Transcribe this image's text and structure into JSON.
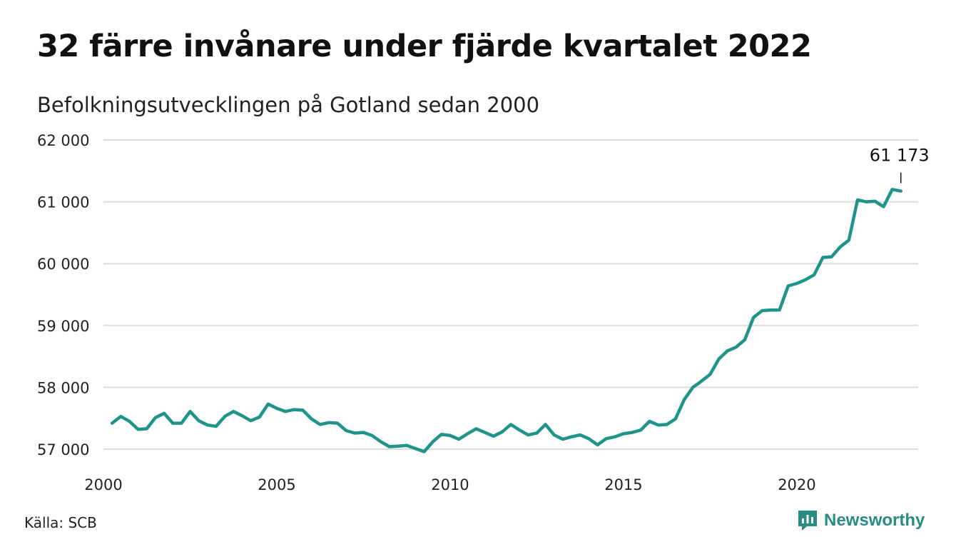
{
  "header": {
    "title": "32 färre invånare under fjärde kvartalet 2022",
    "subtitle": "Befolkningsutvecklingen på Gotland sedan 2000"
  },
  "footer": {
    "source": "Källa: SCB",
    "brand": "Newsworthy"
  },
  "colors": {
    "line": "#1f9488",
    "grid": "#dddddd",
    "brand": "#2a8a84"
  },
  "icons": {
    "brand_logo": "chart-bubble-icon"
  },
  "chart_data": {
    "type": "line",
    "title": "32 färre invånare under fjärde kvartalet 2022",
    "subtitle": "Befolkningsutvecklingen på Gotland sedan 2000",
    "xlabel": "",
    "ylabel": "",
    "xlim": [
      2000,
      2023.5
    ],
    "ylim": [
      57000,
      62000
    ],
    "x_ticks": [
      2000,
      2005,
      2010,
      2015,
      2020
    ],
    "x_tick_labels": [
      "2000",
      "2005",
      "2010",
      "2015",
      "2020"
    ],
    "y_ticks": [
      57000,
      58000,
      59000,
      60000,
      61000,
      62000
    ],
    "y_tick_labels": [
      "57 000",
      "58 000",
      "59 000",
      "60 000",
      "61 000",
      "62 000"
    ],
    "grid": true,
    "annotation": {
      "x": 2023.0,
      "y": 61173,
      "label": "61 173"
    },
    "series": [
      {
        "x": [
          2000.25,
          2000.5,
          2000.75,
          2001.0,
          2001.25,
          2001.5,
          2001.75,
          2002.0,
          2002.25,
          2002.5,
          2002.75,
          2003.0,
          2003.25,
          2003.5,
          2003.75,
          2004.0,
          2004.25,
          2004.5,
          2004.75,
          2005.0,
          2005.25,
          2005.5,
          2005.75,
          2006.0,
          2006.25,
          2006.5,
          2006.75,
          2007.0,
          2007.25,
          2007.5,
          2007.75,
          2008.0,
          2008.25,
          2008.5,
          2008.75,
          2009.0,
          2009.25,
          2009.5,
          2009.75,
          2010.0,
          2010.25,
          2010.5,
          2010.75,
          2011.0,
          2011.25,
          2011.5,
          2011.75,
          2012.0,
          2012.25,
          2012.5,
          2012.75,
          2013.0,
          2013.25,
          2013.5,
          2013.75,
          2014.0,
          2014.25,
          2014.5,
          2014.75,
          2015.0,
          2015.25,
          2015.5,
          2015.75,
          2016.0,
          2016.25,
          2016.5,
          2016.75,
          2017.0,
          2017.25,
          2017.5,
          2017.75,
          2018.0,
          2018.25,
          2018.5,
          2018.75,
          2019.0,
          2019.25,
          2019.5,
          2019.75,
          2020.0,
          2020.25,
          2020.5,
          2020.75,
          2021.0,
          2021.25,
          2021.5,
          2021.75,
          2022.0,
          2022.25,
          2022.5,
          2022.75,
          2023.0
        ],
        "values": [
          57420,
          57530,
          57450,
          57320,
          57330,
          57510,
          57580,
          57420,
          57420,
          57610,
          57460,
          57390,
          57370,
          57530,
          57610,
          57540,
          57460,
          57520,
          57730,
          57660,
          57610,
          57640,
          57630,
          57490,
          57400,
          57430,
          57420,
          57300,
          57260,
          57270,
          57220,
          57120,
          57040,
          57050,
          57060,
          57010,
          56960,
          57120,
          57240,
          57220,
          57160,
          57250,
          57330,
          57270,
          57210,
          57280,
          57400,
          57310,
          57230,
          57260,
          57400,
          57230,
          57160,
          57200,
          57230,
          57170,
          57070,
          57170,
          57200,
          57250,
          57270,
          57310,
          57450,
          57390,
          57400,
          57490,
          57800,
          58000,
          58100,
          58210,
          58460,
          58590,
          58650,
          58770,
          59130,
          59240,
          59250,
          59250,
          59640,
          59680,
          59740,
          59820,
          60100,
          60110,
          60270,
          60380,
          61030,
          61000,
          61010,
          60920,
          61200,
          61173
        ]
      }
    ]
  }
}
